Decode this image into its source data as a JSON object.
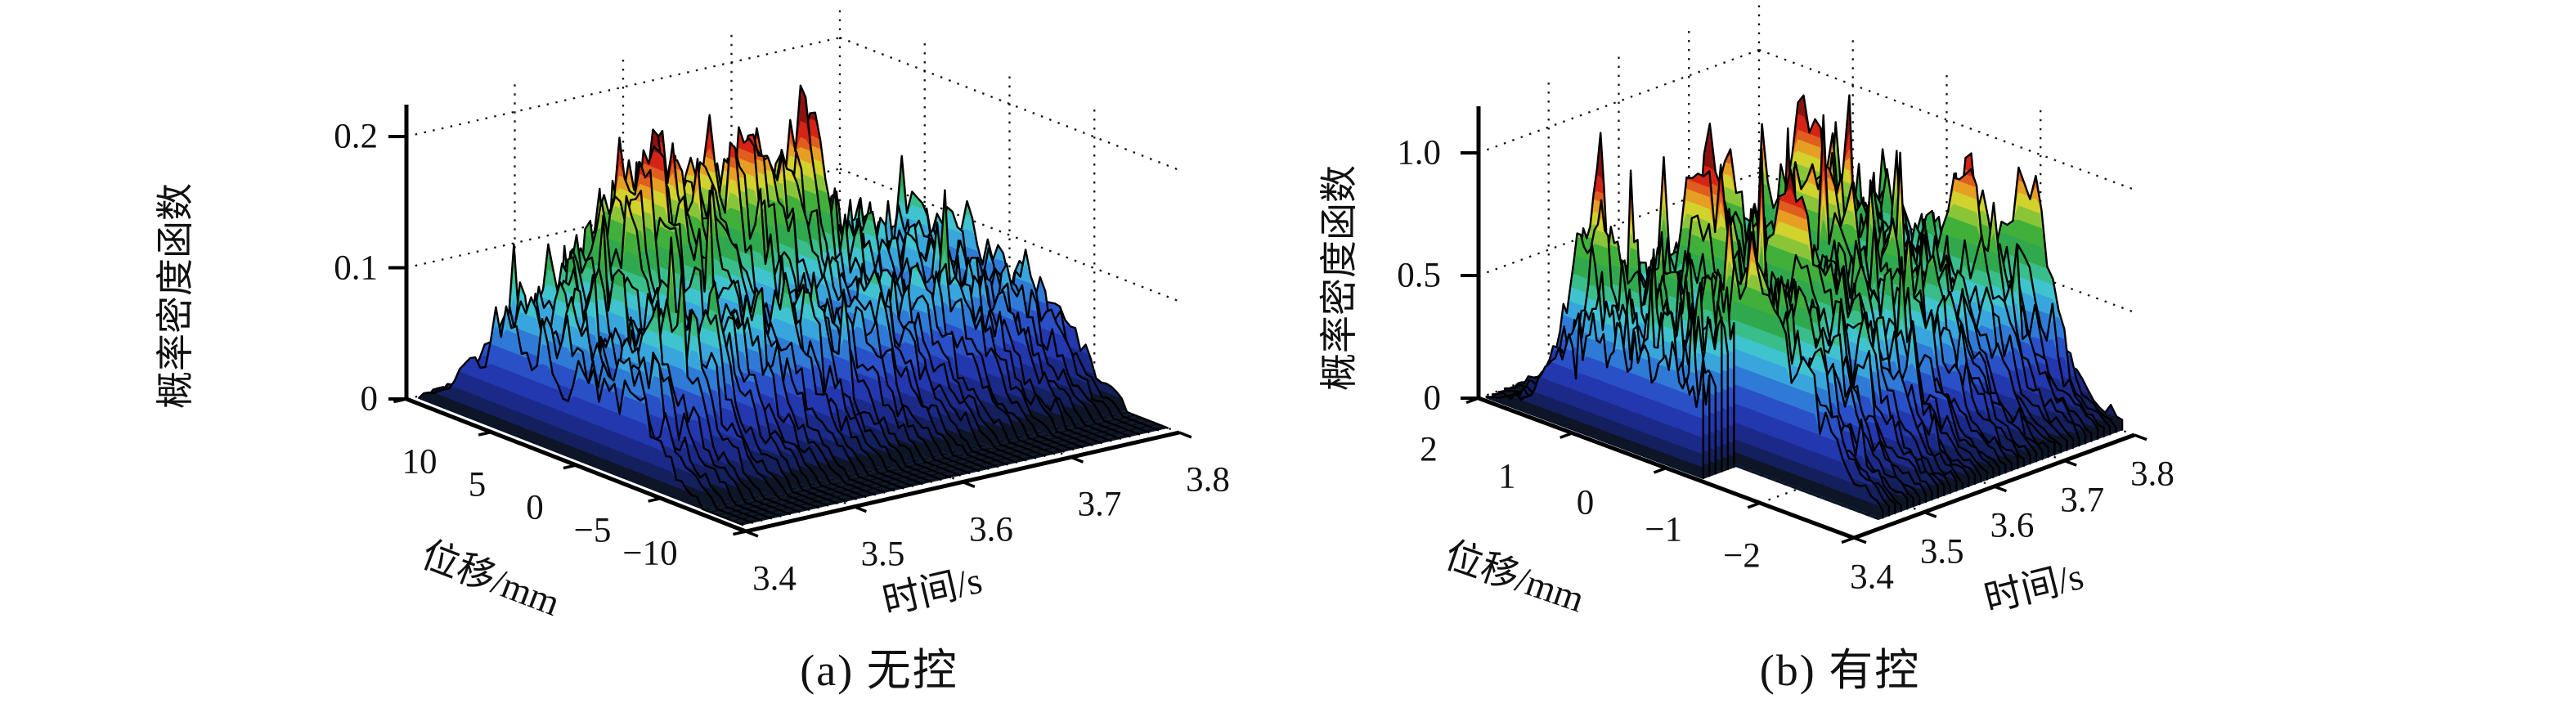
{
  "chart_data": {
    "type": "3d-surface-pair",
    "description_note": "Two MATLAB-style 3D probability-density surfaces (jet colormap) over time and displacement",
    "plots": [
      {
        "id": "a",
        "caption": "(a) 无控",
        "xlabel": "时间/s",
        "ylabel": "位移/mm",
        "zlabel": "概率密度函数",
        "xticks": [
          3.4,
          3.5,
          3.6,
          3.7,
          3.8
        ],
        "xtick_labels": [
          "3.4",
          "3.5",
          "3.6",
          "3.7",
          "3.8"
        ],
        "yticks": [
          10,
          5,
          0,
          -5,
          -10
        ],
        "ytick_labels": [
          "10",
          "5",
          "0",
          "−5",
          "−10"
        ],
        "zticks": [
          0,
          0.1,
          0.2
        ],
        "ztick_labels": [
          "0",
          "0.1",
          "0.2"
        ],
        "xlim": [
          3.4,
          3.8
        ],
        "ylim": [
          -10,
          10
        ],
        "zlim": [
          0,
          0.224
        ],
        "surface": {
          "t_start": 3.408,
          "d_lo": -9.35,
          "d_hi": 9.8,
          "slices": 46,
          "samples": 64,
          "cmax": 0.19,
          "clamp": 0.223,
          "seed": 7,
          "noise_base": 0.55,
          "noise_amp": 0.9,
          "rand_spike_p": 0.982,
          "rand_spike_gain": 1.5,
          "envelope_t": [
            3.4,
            3.45,
            3.5,
            3.55,
            3.6,
            3.65,
            3.7,
            3.75,
            3.8
          ],
          "envelope_d": [
            10,
            7.5,
            5,
            2.5,
            0,
            -2.5,
            -5,
            -7.5,
            -10
          ],
          "envelope": [
            [
              0,
              0,
              0,
              0,
              0,
              0,
              0,
              0,
              0
            ],
            [
              0.02,
              0.03,
              0.03,
              0.03,
              0.03,
              0.03,
              0.03,
              0.03,
              0.02
            ],
            [
              0.07,
              0.09,
              0.1,
              0.1,
              0.1,
              0.1,
              0.09,
              0.09,
              0.08
            ],
            [
              0.08,
              0.1,
              0.11,
              0.1,
              0.1,
              0.1,
              0.1,
              0.09,
              0.08
            ],
            [
              0.06,
              0.07,
              0.06,
              0.07,
              0.06,
              0.07,
              0.06,
              0.07,
              0.06
            ],
            [
              0.07,
              0.09,
              0.09,
              0.1,
              0.09,
              0.09,
              0.09,
              0.08,
              0.08
            ],
            [
              0.02,
              0.03,
              0.03,
              0.03,
              0.03,
              0.03,
              0.03,
              0.03,
              0.02
            ],
            [
              0,
              0,
              0,
              0,
              0,
              0,
              0,
              0,
              0
            ],
            [
              0,
              0,
              0,
              0,
              0,
              0,
              0,
              0,
              0
            ]
          ],
          "peaks": [
            {
              "t": 3.53,
              "d": 4.2,
              "a": 0.075,
              "st": 0.05,
              "sd": 2.3
            },
            {
              "t": 3.62,
              "d": 3.8,
              "a": 0.075,
              "st": 0.05,
              "sd": 2.2
            },
            {
              "t": 3.665,
              "d": 3.2,
              "a": 0.125,
              "st": 0.008,
              "sd": 0.8
            },
            {
              "t": 3.47,
              "d": -2.5,
              "a": 0.03,
              "st": 0.025,
              "sd": 1.5
            }
          ],
          "notch": null
        },
        "layout": {
          "projection": {
            "origin": [
              912,
              650
            ],
            "tvec": [
              530,
              -121
            ],
            "dvec": [
              -415,
              -162
            ],
            "zscale": 1605,
            "ztop": 0.2243
          },
          "xtick_label_offset": [
            35,
            58
          ],
          "ytick_label_offset_start": [
            16,
            77
          ],
          "ytick_label_offset_end": [
            -117,
            27
          ],
          "ztick_label_dx": -35,
          "labels": {
            "zlabel": [
              215,
              362,
              -90
            ],
            "ylabel": [
              600,
              708,
              21
            ],
            "xlabel": [
              1140,
              723,
              -13
            ],
            "caption": [
              1075,
              820,
              0
            ]
          }
        }
      },
      {
        "id": "b",
        "caption": "(b) 有控",
        "xlabel": "时间/s",
        "ylabel": "位移/mm",
        "zlabel": "概率密度函数",
        "xticks": [
          3.4,
          3.5,
          3.6,
          3.7,
          3.8
        ],
        "xtick_labels": [
          "3.4",
          "3.5",
          "3.6",
          "3.7",
          "3.8"
        ],
        "yticks": [
          2,
          1,
          0,
          -1,
          -2
        ],
        "ytick_labels": [
          "2",
          "1",
          "0",
          "−1",
          "−2"
        ],
        "zticks": [
          0,
          0.5,
          1.0
        ],
        "ztick_labels": [
          "0",
          "0.5",
          "1.0"
        ],
        "xlim": [
          3.4,
          3.8
        ],
        "ylim": [
          -2,
          2
        ],
        "zlim": [
          0,
          1.19
        ],
        "surface": {
          "t_start": 3.406,
          "d_lo": -1.87,
          "d_hi": 1.96,
          "slices": 46,
          "samples": 64,
          "cmax": 0.97,
          "clamp": 1.18,
          "seed": 13,
          "noise_base": 0.55,
          "noise_amp": 0.9,
          "rand_spike_p": 0.975,
          "rand_spike_gain": 1.5,
          "envelope_t": [
            3.4,
            3.45,
            3.5,
            3.55,
            3.6,
            3.65,
            3.7,
            3.75,
            3.8
          ],
          "envelope_d": [
            2,
            1.5,
            1,
            0.5,
            0,
            -0.5,
            -1,
            -1.5,
            -2
          ],
          "envelope": [
            [
              0,
              0,
              0,
              0,
              0,
              0,
              0,
              0,
              0
            ],
            [
              0.06,
              0.12,
              0.1,
              0.12,
              0.1,
              0.12,
              0.1,
              0.12,
              0.08
            ],
            [
              0.35,
              0.55,
              0.5,
              0.55,
              0.5,
              0.55,
              0.5,
              0.55,
              0.45
            ],
            [
              0.4,
              0.6,
              0.55,
              0.6,
              0.55,
              0.6,
              0.55,
              0.6,
              0.5
            ],
            [
              0.35,
              0.55,
              0.5,
              0.55,
              0.55,
              0.5,
              0.55,
              0.5,
              0.45
            ],
            [
              0.4,
              0.55,
              0.6,
              0.5,
              0.55,
              0.6,
              0.5,
              0.55,
              0.45
            ],
            [
              0.3,
              0.5,
              0.45,
              0.5,
              0.45,
              0.5,
              0.45,
              0.5,
              0.4
            ],
            [
              0.06,
              0.15,
              0.12,
              0.15,
              0.12,
              0.15,
              0.12,
              0.15,
              0.1
            ],
            [
              0,
              0,
              0,
              0,
              0,
              0,
              0,
              0,
              0
            ]
          ],
          "peaks": [
            {
              "t": 3.437,
              "d": 1.1,
              "a": 0.45,
              "st": 0.01,
              "sd": 0.3
            },
            {
              "t": 3.455,
              "d": -0.45,
              "a": 0.3,
              "st": 0.012,
              "sd": 0.3
            },
            {
              "t": 3.532,
              "d": 0.55,
              "a": 0.55,
              "st": 0.009,
              "sd": 0.26
            },
            {
              "t": 3.558,
              "d": -0.25,
              "a": 0.45,
              "st": 0.01,
              "sd": 0.3
            },
            {
              "t": 3.607,
              "d": 0.95,
              "a": 0.4,
              "st": 0.012,
              "sd": 0.3
            },
            {
              "t": 3.652,
              "d": 0.15,
              "a": 0.5,
              "st": 0.009,
              "sd": 0.28
            },
            {
              "t": 3.703,
              "d": 0.75,
              "a": 0.42,
              "st": 0.011,
              "sd": 0.3
            },
            {
              "t": 3.742,
              "d": -0.7,
              "a": 0.42,
              "st": 0.012,
              "sd": 0.3
            },
            {
              "t": 3.782,
              "d": -1.05,
              "a": 0.5,
              "st": 0.009,
              "sd": 0.26
            }
          ],
          "notch": {
            "t_until": 3.452,
            "d_from": -0.35
          }
        },
        "layout": {
          "projection": {
            "origin": [
              2267,
              658
            ],
            "tvec": [
              343,
              -126
            ],
            "dvec": [
              -459,
              -171
            ],
            "zscale": 300,
            "ztop": 1.19
          },
          "xtick_label_offset": [
            22,
            48
          ],
          "ytick_label_offset_start": [
            -61,
            63
          ],
          "ytick_label_offset_end": [
            -137,
            22
          ],
          "ztick_label_dx": -46,
          "labels": {
            "zlabel": [
              1638,
              340,
              -90
            ],
            "ylabel": [
              1852,
              706,
              19
            ],
            "xlabel": [
              2487,
              719,
              -14
            ],
            "caption": [
              2250,
              820,
              0
            ]
          }
        }
      }
    ]
  },
  "colormap": {
    "floor": "#101a2c",
    "bands": [
      [
        0.045,
        "#0d1526"
      ],
      [
        0.1,
        "#141f5e"
      ],
      [
        0.17,
        "#1b2a88"
      ],
      [
        0.25,
        "#2337ae"
      ],
      [
        0.33,
        "#2a50c8"
      ],
      [
        0.41,
        "#2f7ad6"
      ],
      [
        0.48,
        "#38a6dc"
      ],
      [
        0.54,
        "#3fc4cf"
      ],
      [
        0.6,
        "#39bd8b"
      ],
      [
        0.68,
        "#2fa84e"
      ],
      [
        0.76,
        "#41b03b"
      ],
      [
        0.82,
        "#8ac538"
      ],
      [
        0.875,
        "#d2d22e"
      ],
      [
        0.925,
        "#e69e23"
      ],
      [
        0.965,
        "#df5d1e"
      ],
      [
        1.03,
        "#d52415"
      ],
      [
        9,
        "#8c120e"
      ]
    ]
  }
}
